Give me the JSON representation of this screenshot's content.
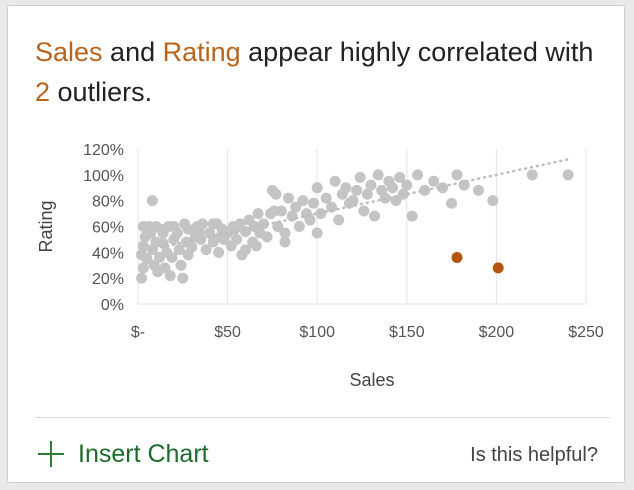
{
  "insight": {
    "field1": "Sales",
    "mid1": " and ",
    "field2": "Rating",
    "mid2": " appear highly correlated with ",
    "count": "2",
    "tail": " outliers."
  },
  "footer": {
    "insert_label": "Insert Chart",
    "helpful_label": "Is this helpful?"
  },
  "colors": {
    "accent": "#b8631e",
    "outlier": "#b5540f",
    "point": "#c4c4c4",
    "action": "#1d6b2c"
  },
  "chart_data": {
    "type": "scatter",
    "xlabel": "Sales",
    "ylabel": "Rating",
    "xlim": [
      0,
      250
    ],
    "ylim": [
      0,
      1.2
    ],
    "x_ticks": [
      0,
      50,
      100,
      150,
      200,
      250
    ],
    "x_tick_labels": [
      "$-",
      "$50",
      "$100",
      "$150",
      "$200",
      "$250"
    ],
    "y_ticks": [
      0,
      0.2,
      0.4,
      0.6,
      0.8,
      1.0,
      1.2
    ],
    "y_tick_labels": [
      "0%",
      "20%",
      "40%",
      "60%",
      "80%",
      "100%",
      "120%"
    ],
    "grid": "vertical",
    "trendline": {
      "x": [
        0,
        240
      ],
      "y": [
        0.4,
        1.12
      ]
    },
    "points": [
      [
        2,
        0.2
      ],
      [
        3,
        0.28
      ],
      [
        2,
        0.38
      ],
      [
        3,
        0.45
      ],
      [
        4,
        0.52
      ],
      [
        6,
        0.6
      ],
      [
        8,
        0.8
      ],
      [
        8,
        0.42
      ],
      [
        9,
        0.3
      ],
      [
        10,
        0.48
      ],
      [
        11,
        0.25
      ],
      [
        12,
        0.36
      ],
      [
        13,
        0.58
      ],
      [
        14,
        0.47
      ],
      [
        15,
        0.28
      ],
      [
        16,
        0.4
      ],
      [
        17,
        0.6
      ],
      [
        18,
        0.22
      ],
      [
        19,
        0.36
      ],
      [
        20,
        0.5
      ],
      [
        22,
        0.55
      ],
      [
        23,
        0.42
      ],
      [
        24,
        0.3
      ],
      [
        25,
        0.2
      ],
      [
        26,
        0.62
      ],
      [
        27,
        0.48
      ],
      [
        28,
        0.58
      ],
      [
        30,
        0.44
      ],
      [
        32,
        0.52
      ],
      [
        33,
        0.6
      ],
      [
        35,
        0.5
      ],
      [
        36,
        0.62
      ],
      [
        38,
        0.42
      ],
      [
        40,
        0.55
      ],
      [
        42,
        0.48
      ],
      [
        44,
        0.62
      ],
      [
        45,
        0.4
      ],
      [
        47,
        0.58
      ],
      [
        48,
        0.5
      ],
      [
        50,
        0.55
      ],
      [
        52,
        0.45
      ],
      [
        53,
        0.6
      ],
      [
        55,
        0.5
      ],
      [
        57,
        0.62
      ],
      [
        58,
        0.38
      ],
      [
        60,
        0.56
      ],
      [
        62,
        0.65
      ],
      [
        64,
        0.48
      ],
      [
        65,
        0.6
      ],
      [
        67,
        0.7
      ],
      [
        70,
        0.62
      ],
      [
        72,
        0.52
      ],
      [
        74,
        0.7
      ],
      [
        75,
        0.88
      ],
      [
        77,
        0.85
      ],
      [
        78,
        0.6
      ],
      [
        80,
        0.72
      ],
      [
        82,
        0.55
      ],
      [
        84,
        0.82
      ],
      [
        86,
        0.68
      ],
      [
        88,
        0.75
      ],
      [
        90,
        0.6
      ],
      [
        92,
        0.8
      ],
      [
        94,
        0.7
      ],
      [
        96,
        0.65
      ],
      [
        98,
        0.78
      ],
      [
        100,
        0.9
      ],
      [
        100,
        0.55
      ],
      [
        102,
        0.7
      ],
      [
        105,
        0.82
      ],
      [
        108,
        0.75
      ],
      [
        110,
        0.95
      ],
      [
        112,
        0.65
      ],
      [
        114,
        0.85
      ],
      [
        116,
        0.9
      ],
      [
        118,
        0.78
      ],
      [
        120,
        0.8
      ],
      [
        122,
        0.88
      ],
      [
        124,
        0.98
      ],
      [
        126,
        0.72
      ],
      [
        128,
        0.85
      ],
      [
        130,
        0.92
      ],
      [
        132,
        0.68
      ],
      [
        134,
        1.0
      ],
      [
        136,
        0.88
      ],
      [
        138,
        0.82
      ],
      [
        140,
        0.95
      ],
      [
        142,
        0.9
      ],
      [
        144,
        0.8
      ],
      [
        146,
        0.98
      ],
      [
        148,
        0.85
      ],
      [
        150,
        0.92
      ],
      [
        153,
        0.68
      ],
      [
        156,
        1.0
      ],
      [
        160,
        0.88
      ],
      [
        165,
        0.95
      ],
      [
        170,
        0.9
      ],
      [
        175,
        0.78
      ],
      [
        178,
        1.0
      ],
      [
        182,
        0.92
      ],
      [
        190,
        0.88
      ],
      [
        198,
        0.8
      ],
      [
        220,
        1.0
      ],
      [
        240,
        1.0
      ],
      [
        3,
        0.6
      ],
      [
        5,
        0.35
      ],
      [
        7,
        0.55
      ],
      [
        10,
        0.6
      ],
      [
        14,
        0.55
      ],
      [
        20,
        0.6
      ],
      [
        28,
        0.38
      ],
      [
        34,
        0.56
      ],
      [
        42,
        0.62
      ],
      [
        46,
        0.52
      ],
      [
        54,
        0.58
      ],
      [
        60,
        0.42
      ],
      [
        66,
        0.45
      ],
      [
        68,
        0.55
      ],
      [
        76,
        0.72
      ],
      [
        82,
        0.48
      ]
    ],
    "outliers": [
      [
        178,
        0.36
      ],
      [
        201,
        0.28
      ]
    ]
  }
}
